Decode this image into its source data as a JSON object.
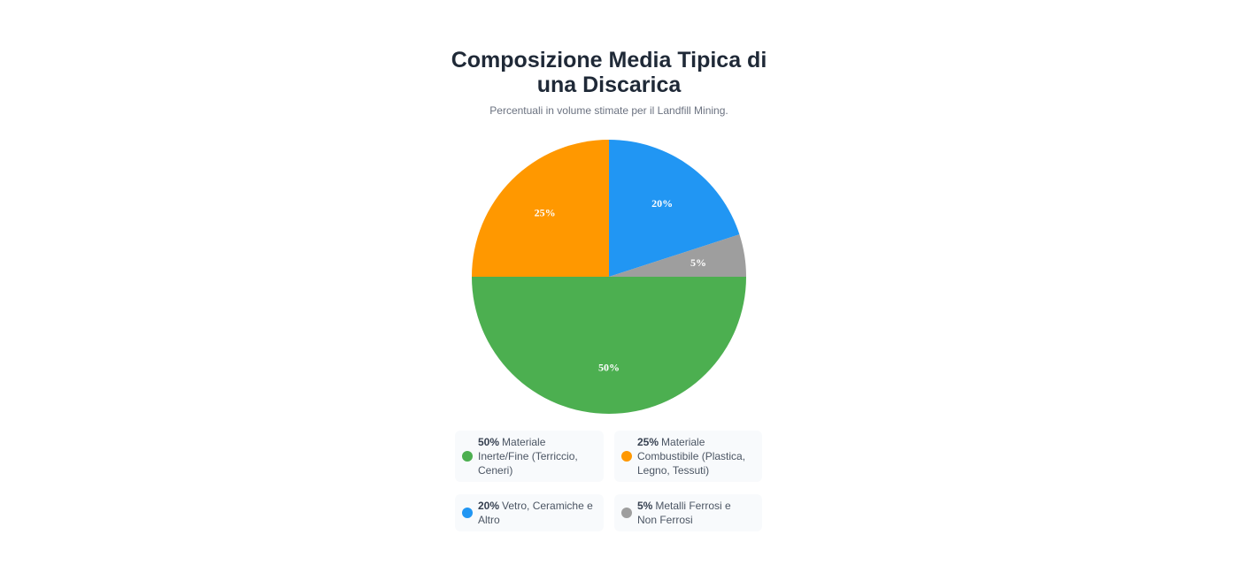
{
  "chart_data": {
    "type": "pie",
    "title": "Composizione Media Tipica di una Discarica",
    "subtitle": "Percentuali in volume stimate per il Landfill Mining.",
    "categories": [
      "Materiale Inerte/Fine (Terriccio, Ceneri)",
      "Materiale Combustibile (Plastica, Legno, Tessuti)",
      "Vetro, Ceramiche e Altro",
      "Metalli Ferrosi e Non Ferrosi"
    ],
    "values": [
      50,
      25,
      20,
      5
    ],
    "value_labels": [
      "50%",
      "25%",
      "20%",
      "5%"
    ],
    "colors": [
      "#4caf50",
      "#ff9800",
      "#2196f3",
      "#9e9e9e"
    ]
  }
}
